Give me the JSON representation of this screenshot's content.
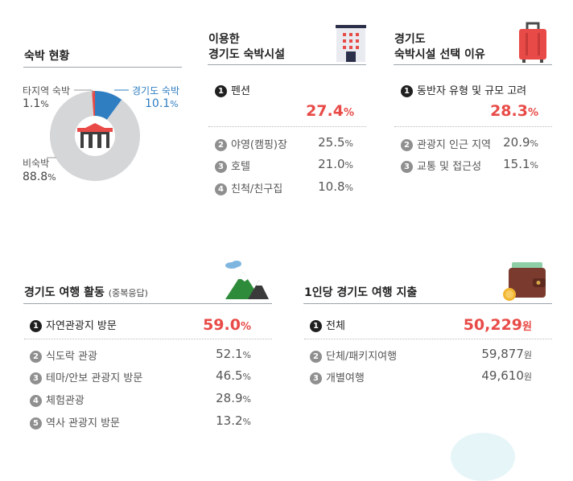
{
  "lodging_status": {
    "title": "숙박 현황",
    "other_region": {
      "label": "타지역 숙박",
      "value": "1.1",
      "unit": "%"
    },
    "gyeonggi": {
      "label": "경기도 숙박",
      "value": "10.1",
      "unit": "%"
    },
    "non_lodging": {
      "label": "비숙박",
      "value": "88.8",
      "unit": "%"
    },
    "colors": {
      "other": "#e84b47",
      "gyeonggi": "#2f7ec1",
      "non": "#d4d6d8"
    }
  },
  "facility_used": {
    "title_line1": "이용한",
    "title_line2": "경기도 숙박시설",
    "top": {
      "rank": "1",
      "label": "펜션",
      "value": "27.4",
      "unit": "%"
    },
    "items": [
      {
        "rank": "2",
        "label": "야영(캠핑)장",
        "value": "25.5",
        "unit": "%"
      },
      {
        "rank": "3",
        "label": "호텔",
        "value": "21.0",
        "unit": "%"
      },
      {
        "rank": "4",
        "label": "친척/친구집",
        "value": "10.8",
        "unit": "%"
      }
    ]
  },
  "selection_reason": {
    "title_line1": "경기도",
    "title_line2": "숙박시설 선택 이유",
    "top": {
      "rank": "1",
      "label": "동반자 유형 및 규모 고려",
      "value": "28.3",
      "unit": "%"
    },
    "items": [
      {
        "rank": "2",
        "label": "관광지 인근 지역",
        "value": "20.9",
        "unit": "%"
      },
      {
        "rank": "3",
        "label": "교통 및 접근성",
        "value": "15.1",
        "unit": "%"
      }
    ]
  },
  "travel_activity": {
    "title": "경기도 여행 활동",
    "title_note": "(중복응답)",
    "top": {
      "rank": "1",
      "label": "자연관광지 방문",
      "value": "59.0",
      "unit": "%"
    },
    "items": [
      {
        "rank": "2",
        "label": "식도락 관광",
        "value": "52.1",
        "unit": "%"
      },
      {
        "rank": "3",
        "label": "테마/안보 관광지 방문",
        "value": "46.5",
        "unit": "%"
      },
      {
        "rank": "4",
        "label": "체험관광",
        "value": "28.9",
        "unit": "%"
      },
      {
        "rank": "5",
        "label": "역사 관광지 방문",
        "value": "13.2",
        "unit": "%"
      }
    ]
  },
  "expense": {
    "title": "1인당 경기도 여행 지출",
    "top": {
      "rank": "1",
      "label": "전체",
      "value": "50,229",
      "unit": "원"
    },
    "items": [
      {
        "rank": "2",
        "label": "단체/패키지여행",
        "value": "59,877",
        "unit": "원"
      },
      {
        "rank": "3",
        "label": "개별여행",
        "value": "49,610",
        "unit": "원"
      }
    ]
  },
  "icons": [
    "building-icon",
    "suitcase-icon",
    "mountain-icon",
    "wallet-icon",
    "house-icon"
  ]
}
